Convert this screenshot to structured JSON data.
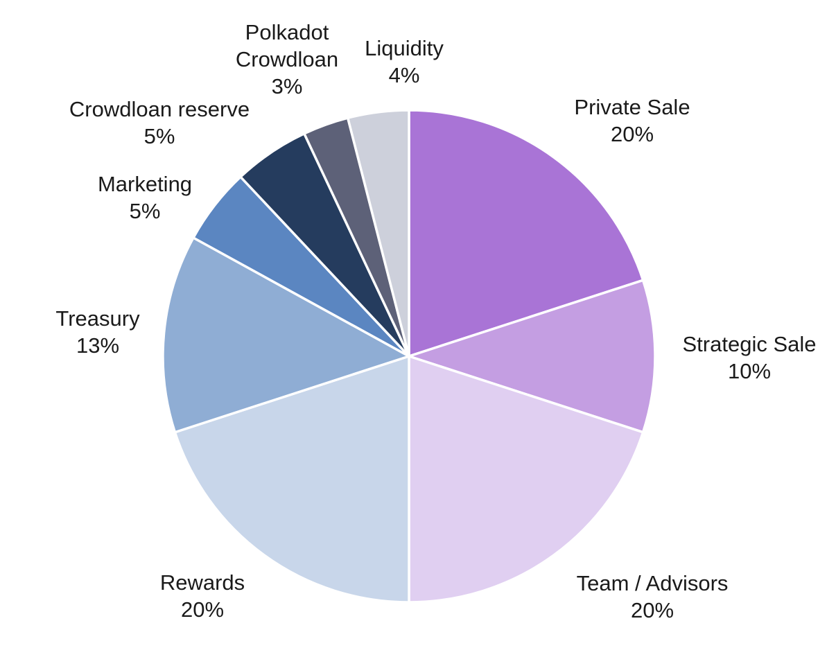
{
  "chart_data": {
    "type": "pie",
    "slices": [
      {
        "label": "Private Sale",
        "label_lines": [
          "Private Sale"
        ],
        "value": 20,
        "value_label": "20%",
        "color": "#a974d6"
      },
      {
        "label": "Strategic Sale",
        "label_lines": [
          "Strategic Sale"
        ],
        "value": 10,
        "value_label": "10%",
        "color": "#c49ee2"
      },
      {
        "label": "Team / Advisors",
        "label_lines": [
          "Team / Advisors"
        ],
        "value": 20,
        "value_label": "20%",
        "color": "#e0cff1"
      },
      {
        "label": "Rewards",
        "label_lines": [
          "Rewards"
        ],
        "value": 20,
        "value_label": "20%",
        "color": "#c8d6ea"
      },
      {
        "label": "Treasury",
        "label_lines": [
          "Treasury"
        ],
        "value": 13,
        "value_label": "13%",
        "color": "#8fadd4"
      },
      {
        "label": "Marketing",
        "label_lines": [
          "Marketing"
        ],
        "value": 5,
        "value_label": "5%",
        "color": "#5b86c1"
      },
      {
        "label": "Crowdloan reserve",
        "label_lines": [
          "Crowdloan reserve"
        ],
        "value": 5,
        "value_label": "5%",
        "color": "#253c5e"
      },
      {
        "label": "Polkadot Crowdloan",
        "label_lines": [
          "Polkadot",
          "Crowdloan"
        ],
        "value": 3,
        "value_label": "3%",
        "color": "#5d6178"
      },
      {
        "label": "Liquidity",
        "label_lines": [
          "Liquidity"
        ],
        "value": 4,
        "value_label": "4%",
        "color": "#cdd0db"
      }
    ]
  }
}
